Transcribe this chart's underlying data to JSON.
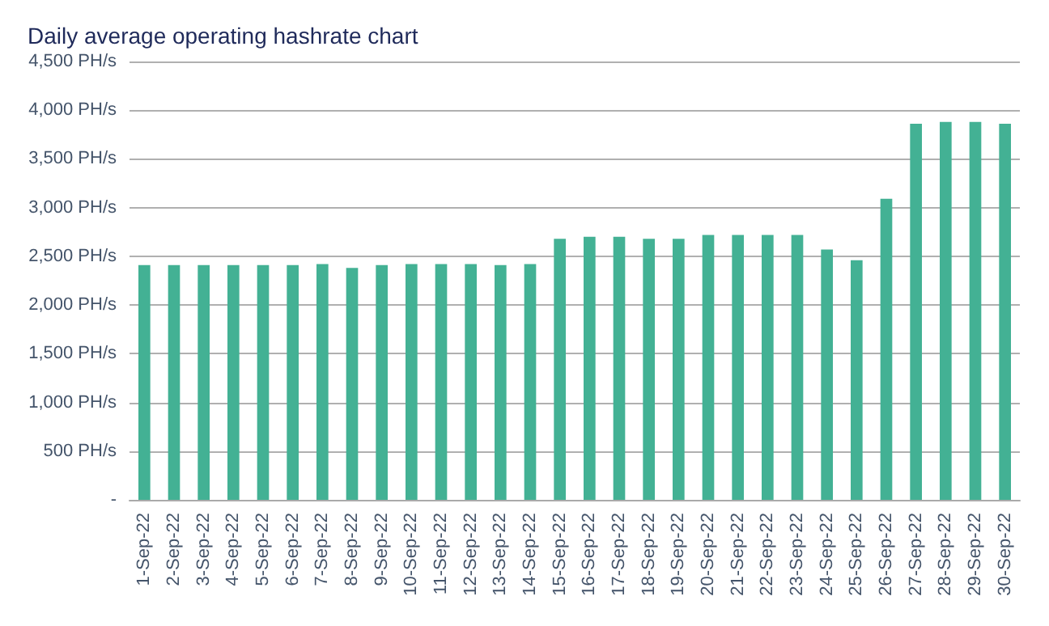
{
  "chart_data": {
    "type": "bar",
    "title": "Daily average operating hashrate chart",
    "categories": [
      "1-Sep-22",
      "2-Sep-22",
      "3-Sep-22",
      "4-Sep-22",
      "5-Sep-22",
      "6-Sep-22",
      "7-Sep-22",
      "8-Sep-22",
      "9-Sep-22",
      "10-Sep-22",
      "11-Sep-22",
      "12-Sep-22",
      "13-Sep-22",
      "14-Sep-22",
      "15-Sep-22",
      "16-Sep-22",
      "17-Sep-22",
      "18-Sep-22",
      "19-Sep-22",
      "20-Sep-22",
      "21-Sep-22",
      "22-Sep-22",
      "23-Sep-22",
      "24-Sep-22",
      "25-Sep-22",
      "26-Sep-22",
      "27-Sep-22",
      "28-Sep-22",
      "29-Sep-22",
      "30-Sep-22"
    ],
    "values": [
      2410,
      2410,
      2410,
      2410,
      2410,
      2410,
      2420,
      2380,
      2410,
      2420,
      2420,
      2420,
      2410,
      2420,
      2680,
      2700,
      2700,
      2680,
      2680,
      2720,
      2720,
      2720,
      2720,
      2570,
      2460,
      3090,
      3860,
      3880,
      3880,
      3860
    ],
    "color": "#43b194",
    "ylim": [
      0,
      4500
    ],
    "yticks": [
      {
        "value": 0,
        "label": "-"
      },
      {
        "value": 500,
        "label": "500 PH/s"
      },
      {
        "value": 1000,
        "label": "1,000 PH/s"
      },
      {
        "value": 1500,
        "label": "1,500 PH/s"
      },
      {
        "value": 2000,
        "label": "2,000 PH/s"
      },
      {
        "value": 2500,
        "label": "2,500 PH/s"
      },
      {
        "value": 3000,
        "label": "3,000 PH/s"
      },
      {
        "value": 3500,
        "label": "3,500 PH/s"
      },
      {
        "value": 4000,
        "label": "4,000 PH/s"
      },
      {
        "value": 4500,
        "label": "4,500 PH/s"
      }
    ],
    "grid": true
  }
}
